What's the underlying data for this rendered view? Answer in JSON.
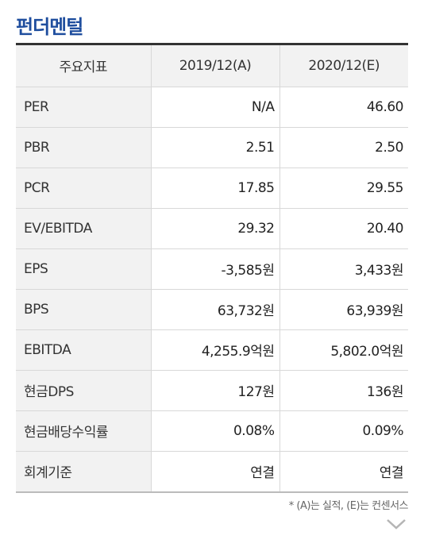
{
  "section_title": "펀더멘털",
  "table": {
    "headers": [
      "주요지표",
      "2019/12(A)",
      "2020/12(E)"
    ],
    "rows": [
      {
        "label": "PER",
        "v2019": "N/A",
        "v2020": "46.60"
      },
      {
        "label": "PBR",
        "v2019": "2.51",
        "v2020": "2.50"
      },
      {
        "label": "PCR",
        "v2019": "17.85",
        "v2020": "29.55"
      },
      {
        "label": "EV/EBITDA",
        "v2019": "29.32",
        "v2020": "20.40"
      },
      {
        "label": "EPS",
        "v2019": "-3,585원",
        "v2020": "3,433원"
      },
      {
        "label": "BPS",
        "v2019": "63,732원",
        "v2020": "63,939원"
      },
      {
        "label": "EBITDA",
        "v2019": "4,255.9억원",
        "v2020": "5,802.0억원"
      },
      {
        "label": "현금DPS",
        "v2019": "127원",
        "v2020": "136원"
      },
      {
        "label": "현금배당수익률",
        "v2019": "0.08%",
        "v2020": "0.09%"
      },
      {
        "label": "회계기준",
        "v2019": "연결",
        "v2020": "연결"
      }
    ]
  },
  "footnote": "* (A)는 실적, (E)는 컨센서스",
  "icons": {
    "expand": "chevron-down-icon"
  }
}
